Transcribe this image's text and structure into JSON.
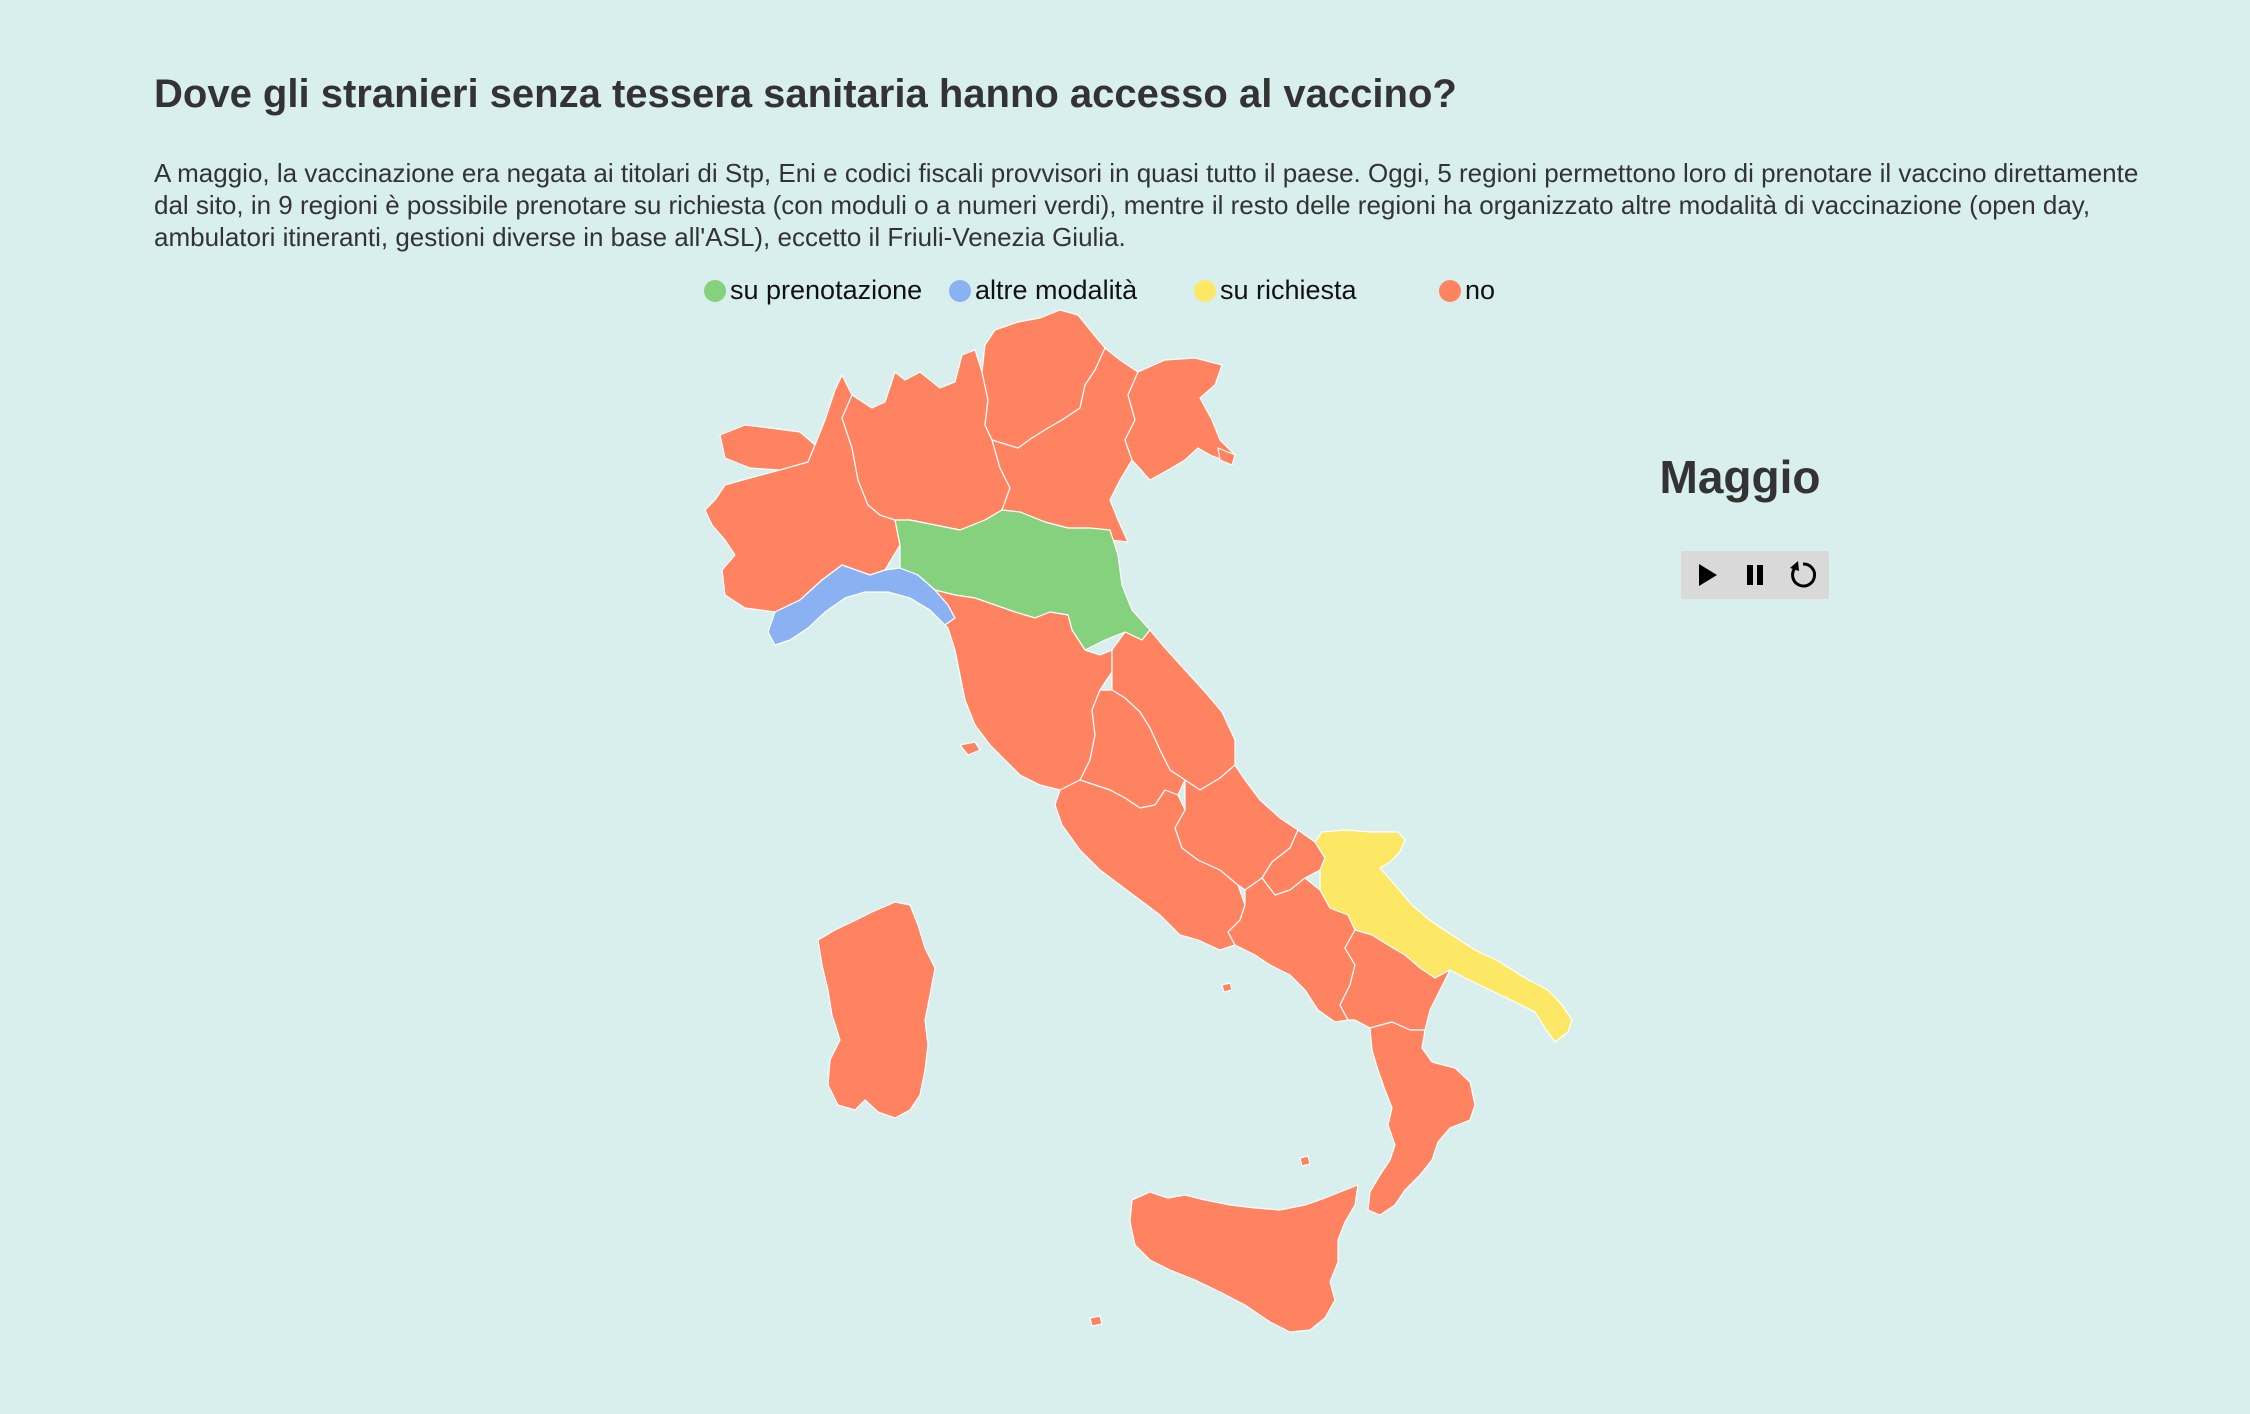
{
  "title": "Dove gli stranieri senza tessera sanitaria hanno accesso al vaccino?",
  "description": "A maggio, la vaccinazione era negata ai titolari di Stp, Eni e codici fiscali provvisori in quasi tutto il paese. Oggi, 5 regioni permettono loro di prenotare il vaccino direttamente dal sito, in 9 regioni è possibile prenotare su richiesta (con moduli o a numeri verdi), mentre il resto delle regioni ha organizzato altre modalità di vaccinazione (open day, ambulatori itineranti, gestioni diverse in base all'ASL), eccetto il Friuli-Venezia Giulia.",
  "legend": [
    {
      "label": "su prenotazione",
      "color": "#86d17e"
    },
    {
      "label": "altre modalità",
      "color": "#8ab2f2"
    },
    {
      "label": "su richiesta",
      "color": "#fde865"
    },
    {
      "label": "no",
      "color": "#ff8360"
    }
  ],
  "month_label": "Maggio",
  "controls": {
    "play_icon": "play-icon",
    "pause_icon": "pause-icon",
    "restart_icon": "restart-icon"
  },
  "regions": {
    "Valle d'Aosta": "no",
    "Piemonte": "no",
    "Lombardia": "no",
    "Trentino-Alto Adige": "no",
    "Veneto": "no",
    "Friuli-Venezia Giulia": "no",
    "Liguria": "altre modalità",
    "Emilia-Romagna": "su prenotazione",
    "Toscana": "no",
    "Umbria": "no",
    "Marche": "no",
    "Lazio": "no",
    "Abruzzo": "no",
    "Molise": "no",
    "Campania": "no",
    "Puglia": "su richiesta",
    "Basilicata": "no",
    "Calabria": "no",
    "Sicilia": "no",
    "Sardegna": "no"
  }
}
